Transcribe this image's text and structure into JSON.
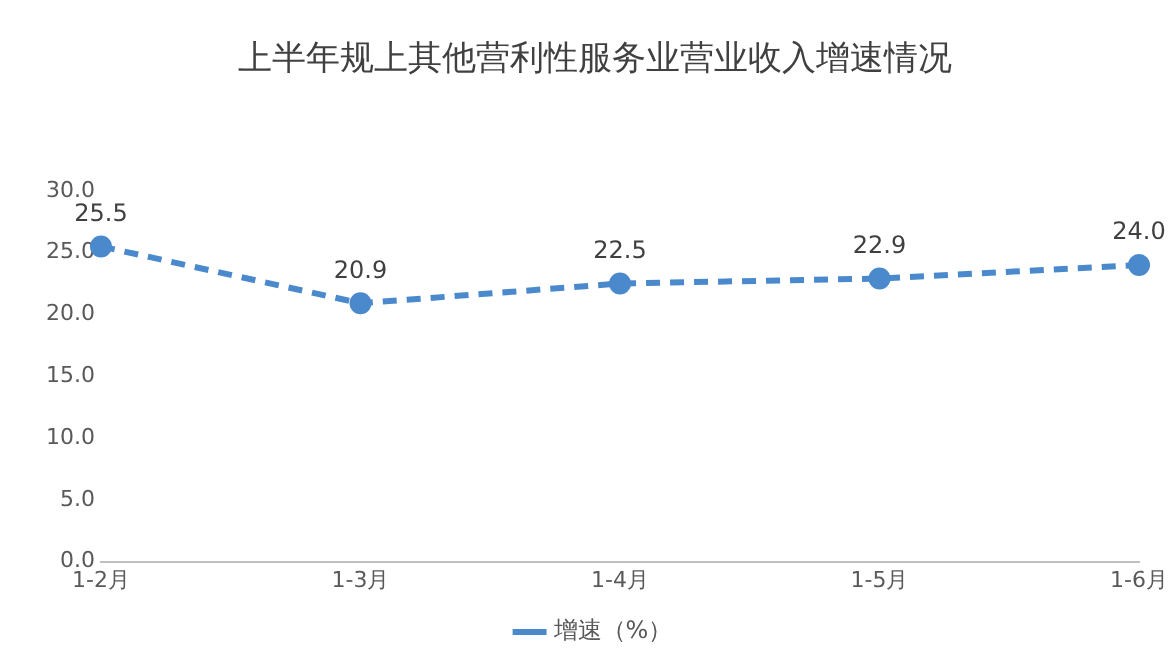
{
  "chart_data": {
    "type": "line",
    "title": "上半年规上其他营利性服务业营业收入增速情况",
    "categories": [
      "1-2月",
      "1-3月",
      "1-4月",
      "1-5月",
      "1-6月"
    ],
    "series": [
      {
        "name": "增速（%）",
        "color": "#4a89cc",
        "values": [
          25.5,
          20.9,
          22.5,
          22.9,
          24.0
        ],
        "value_labels": [
          "25.5",
          "20.9",
          "22.5",
          "22.9",
          "24.0"
        ]
      }
    ],
    "ylim": [
      0,
      30
    ],
    "yticks": [
      {
        "value": 0,
        "label": "0.0"
      },
      {
        "value": 5,
        "label": "5.0"
      },
      {
        "value": 10,
        "label": "10.0"
      },
      {
        "value": 15,
        "label": "15.0"
      },
      {
        "value": 20,
        "label": "20.0"
      },
      {
        "value": 25,
        "label": "25.0"
      },
      {
        "value": 30,
        "label": "30.0"
      }
    ],
    "grid": false,
    "legend": "bottom",
    "marker": "circle",
    "line_style": "dashed"
  }
}
